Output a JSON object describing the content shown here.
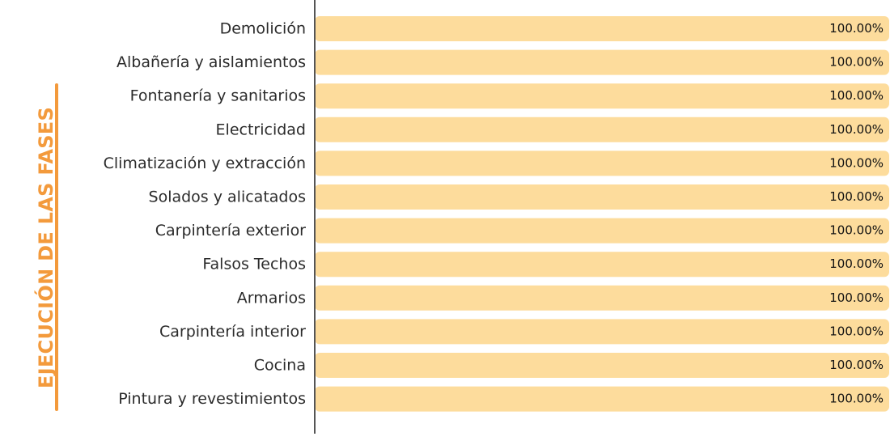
{
  "side_title": "EJECUCIÓN DE LAS FASES",
  "colors": {
    "bar": "#fddc9c",
    "accent": "#f39a3c",
    "axis": "#555555"
  },
  "chart_data": {
    "type": "bar",
    "orientation": "horizontal",
    "categories": [
      "Demolición",
      "Albañería y aislamientos",
      "Fontanería y sanitarios",
      "Electricidad",
      "Climatización y extracción",
      "Solados y alicatados",
      "Carpintería exterior",
      "Falsos Techos",
      "Armarios",
      "Carpintería interior",
      "Cocina",
      "Pintura y revestimientos"
    ],
    "values": [
      100,
      100,
      100,
      100,
      100,
      100,
      100,
      100,
      100,
      100,
      100,
      100
    ],
    "value_labels": [
      "100.00%",
      "100.00%",
      "100.00%",
      "100.00%",
      "100.00%",
      "100.00%",
      "100.00%",
      "100.00%",
      "100.00%",
      "100.00%",
      "100.00%",
      "100.00%"
    ],
    "xlim": [
      0,
      100
    ],
    "grid": false,
    "legend": "none"
  }
}
